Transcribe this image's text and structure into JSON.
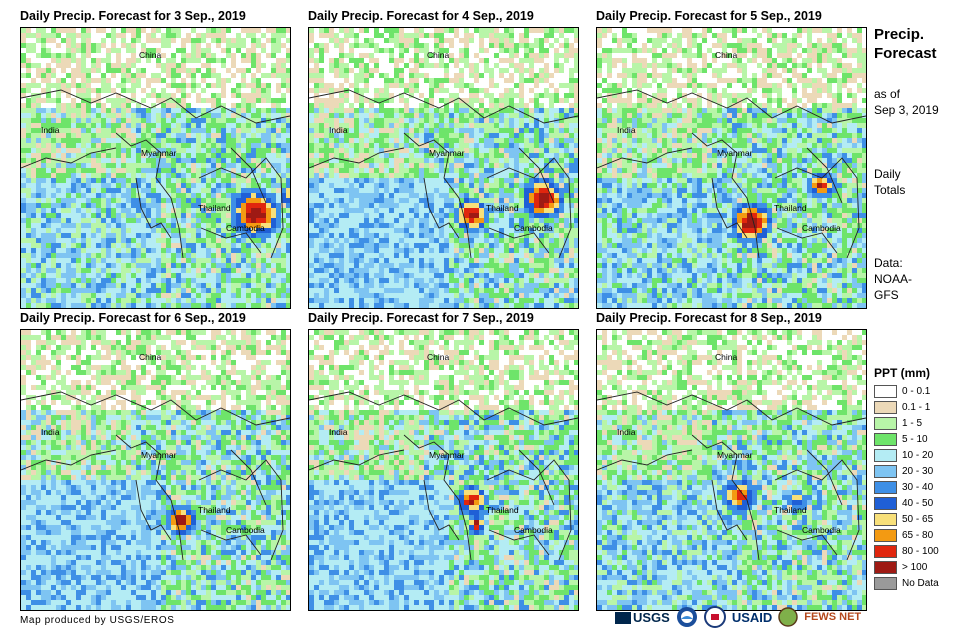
{
  "panels": [
    {
      "title": "Daily Precip. Forecast for 3 Sep., 2019",
      "day": 3
    },
    {
      "title": "Daily Precip. Forecast for 4 Sep., 2019",
      "day": 4
    },
    {
      "title": "Daily Precip. Forecast for 5 Sep., 2019",
      "day": 5
    },
    {
      "title": "Daily Precip. Forecast for 6 Sep., 2019",
      "day": 6
    },
    {
      "title": "Daily Precip. Forecast for 7 Sep., 2019",
      "day": 7
    },
    {
      "title": "Daily Precip. Forecast for 8 Sep., 2019",
      "day": 8
    }
  ],
  "places": {
    "china": "China",
    "india": "India",
    "myanmar": "Myanmar",
    "thailand": "Thailand",
    "cambodia": "Cambodia"
  },
  "side": {
    "title_line1": "Precip.",
    "title_line2": "Forecast",
    "asof_line1": "as of",
    "asof_line2": "Sep 3, 2019",
    "daily_line1": "Daily",
    "daily_line2": "Totals",
    "data_line1": "Data:",
    "data_line2": "NOAA-",
    "data_line3": "GFS"
  },
  "legend": {
    "title": "PPT (mm)",
    "items": [
      {
        "label": "0 - 0.1",
        "color": "#ffffff"
      },
      {
        "label": "0.1 - 1",
        "color": "#ecd9b8"
      },
      {
        "label": "1 - 5",
        "color": "#b8f5a8"
      },
      {
        "label": "5 - 10",
        "color": "#6ee46a"
      },
      {
        "label": "10 - 20",
        "color": "#b4ecf4"
      },
      {
        "label": "20 - 30",
        "color": "#7ec4f2"
      },
      {
        "label": "30 - 40",
        "color": "#3e8fe6"
      },
      {
        "label": "40 - 50",
        "color": "#1f5fd6"
      },
      {
        "label": "50 - 65",
        "color": "#f8e07a"
      },
      {
        "label": "65 - 80",
        "color": "#f39a12"
      },
      {
        "label": "80 - 100",
        "color": "#e0260e"
      },
      {
        "label": "> 100",
        "color": "#9e1a14"
      },
      {
        "label": "No Data",
        "color": "#9a9a9a"
      }
    ]
  },
  "credit": "Map produced by USGS/EROS",
  "logos": {
    "usgs": "USGS",
    "usaid": "USAID",
    "fewsnet": "FEWS NET"
  }
}
